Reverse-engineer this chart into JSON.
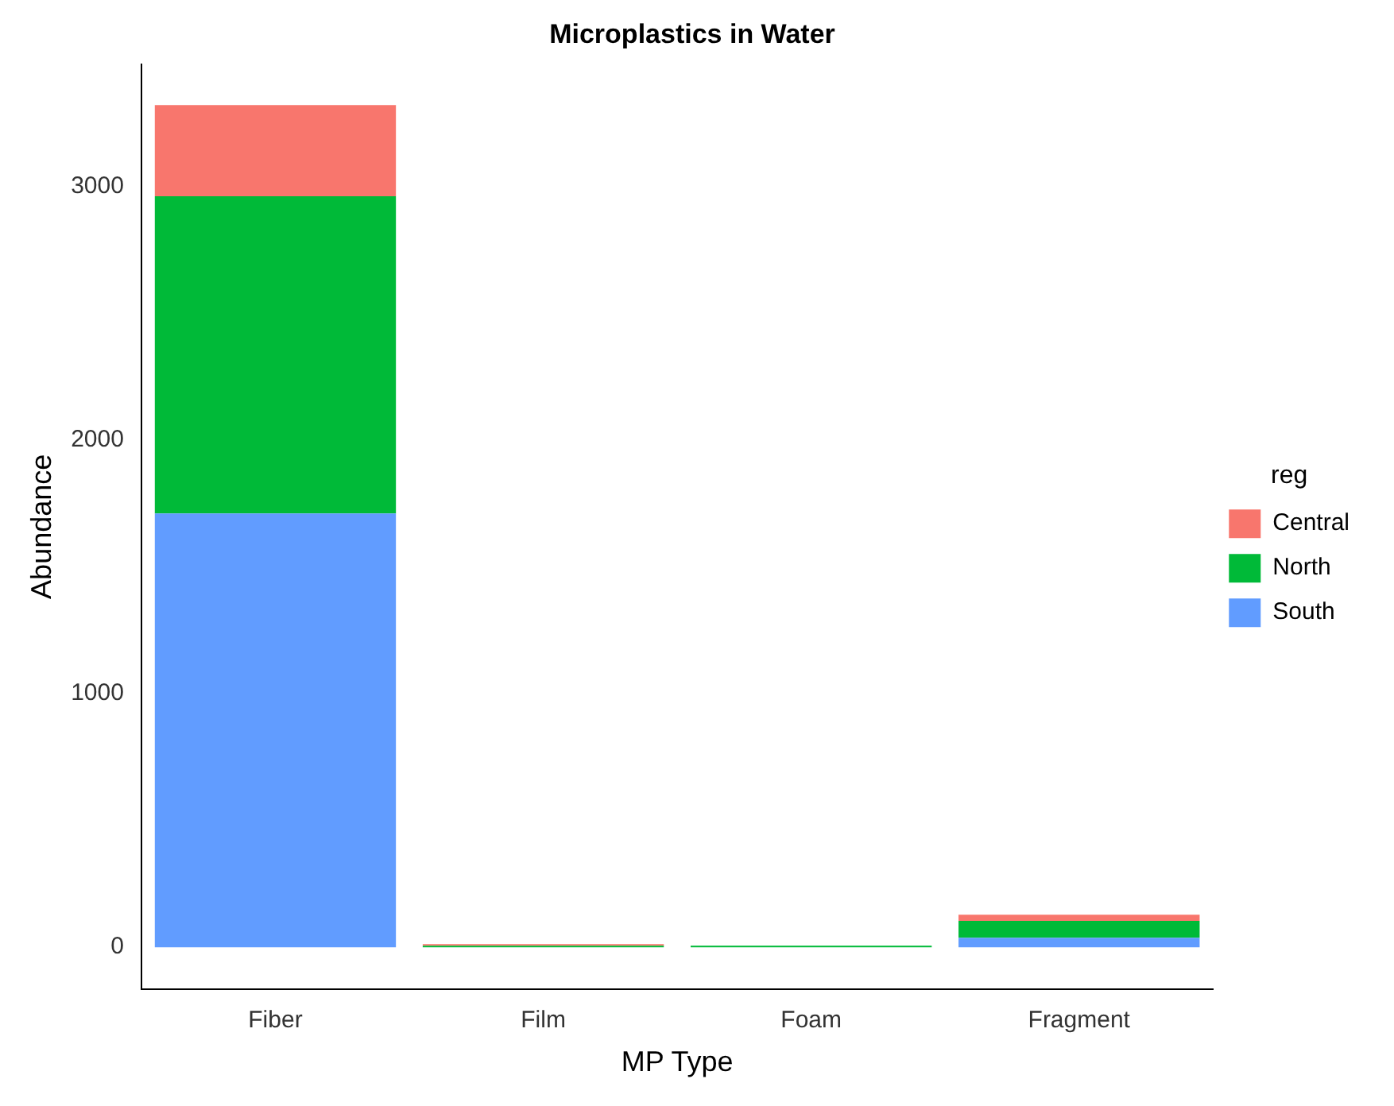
{
  "chart_data": {
    "type": "bar",
    "title": "Microplastics in Water",
    "xlabel": "MP Type",
    "ylabel": "Abundance",
    "legend_title": "reg",
    "categories": [
      "Fiber",
      "Film",
      "Foam",
      "Fragment"
    ],
    "series": [
      {
        "name": "South",
        "color": "#619cff",
        "values": [
          1711,
          0,
          0,
          37
        ]
      },
      {
        "name": "North",
        "color": "#00ba38",
        "values": [
          1251,
          6,
          6,
          67
        ]
      },
      {
        "name": "Central",
        "color": "#f8766d",
        "values": [
          360,
          6,
          0,
          24
        ]
      }
    ],
    "stacked": true,
    "ylim": [
      -165,
      3483
    ],
    "yticks": [
      0,
      1000,
      2000,
      3000
    ],
    "grid": false,
    "legend": "right"
  }
}
